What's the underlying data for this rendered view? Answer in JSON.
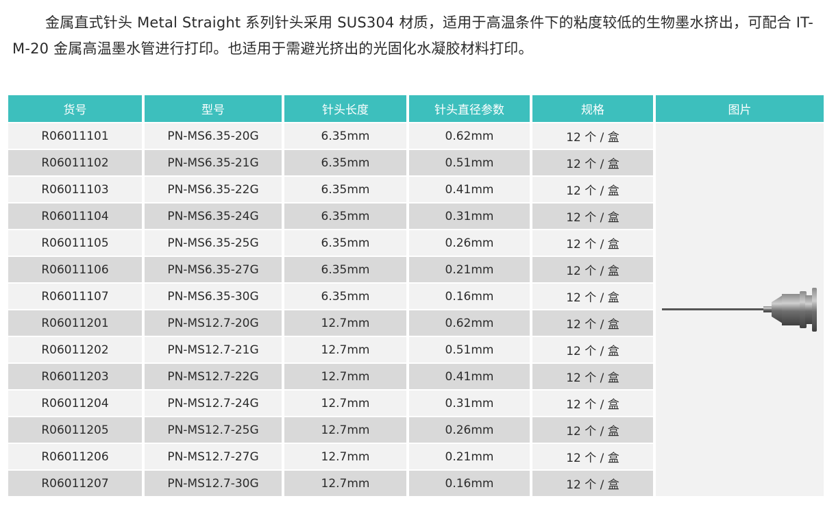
{
  "intro_text": "金属直式针头 Metal Straight 系列针头采用 SUS304 材质，适用于高温条件下的粘度较低的生物墨水挤出，可配合 IT-M-20 金属高温墨水管进行打印。也适用于需避光挤出的光固化水凝胶材料打印。",
  "table": {
    "headers": [
      "货号",
      "型号",
      "针头长度",
      "针头直径参数",
      "规格",
      "图片"
    ],
    "rows": [
      {
        "sku": "R06011101",
        "model": "PN-MS6.35-20G",
        "length": "6.35mm",
        "diameter": "0.62mm",
        "spec": "12 个 / 盒"
      },
      {
        "sku": "R06011102",
        "model": "PN-MS6.35-21G",
        "length": "6.35mm",
        "diameter": "0.51mm",
        "spec": "12 个 / 盒"
      },
      {
        "sku": "R06011103",
        "model": "PN-MS6.35-22G",
        "length": "6.35mm",
        "diameter": "0.41mm",
        "spec": "12 个 / 盒"
      },
      {
        "sku": "R06011104",
        "model": "PN-MS6.35-24G",
        "length": "6.35mm",
        "diameter": "0.31mm",
        "spec": "12 个 / 盒"
      },
      {
        "sku": "R06011105",
        "model": "PN-MS6.35-25G",
        "length": "6.35mm",
        "diameter": "0.26mm",
        "spec": "12 个 / 盒"
      },
      {
        "sku": "R06011106",
        "model": "PN-MS6.35-27G",
        "length": "6.35mm",
        "diameter": "0.21mm",
        "spec": "12 个 / 盒"
      },
      {
        "sku": "R06011107",
        "model": "PN-MS6.35-30G",
        "length": "6.35mm",
        "diameter": "0.16mm",
        "spec": "12 个 / 盒"
      },
      {
        "sku": "R06011201",
        "model": "PN-MS12.7-20G",
        "length": "12.7mm",
        "diameter": "0.62mm",
        "spec": "12 个 / 盒"
      },
      {
        "sku": "R06011202",
        "model": "PN-MS12.7-21G",
        "length": "12.7mm",
        "diameter": "0.51mm",
        "spec": "12 个 / 盒"
      },
      {
        "sku": "R06011203",
        "model": "PN-MS12.7-22G",
        "length": "12.7mm",
        "diameter": "0.41mm",
        "spec": "12 个 / 盒"
      },
      {
        "sku": "R06011204",
        "model": "PN-MS12.7-24G",
        "length": "12.7mm",
        "diameter": "0.31mm",
        "spec": "12 个 / 盒"
      },
      {
        "sku": "R06011205",
        "model": "PN-MS12.7-25G",
        "length": "12.7mm",
        "diameter": "0.26mm",
        "spec": "12 个 / 盒"
      },
      {
        "sku": "R06011206",
        "model": "PN-MS12.7-27G",
        "length": "12.7mm",
        "diameter": "0.21mm",
        "spec": "12 个 / 盒"
      },
      {
        "sku": "R06011207",
        "model": "PN-MS12.7-30G",
        "length": "12.7mm",
        "diameter": "0.16mm",
        "spec": "12 个 / 盒"
      }
    ],
    "image_icon": "metal-straight-needle-icon"
  },
  "colors": {
    "header_bg": "#3dbfbd",
    "row_light": "#f2f2f2",
    "row_dark": "#d9d9d9"
  }
}
